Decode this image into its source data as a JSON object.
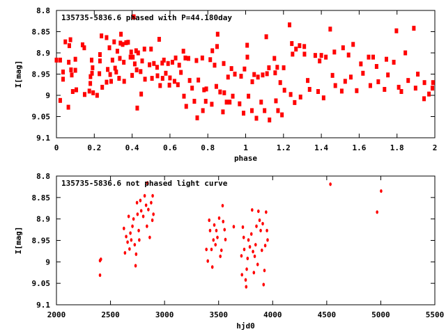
{
  "chart_data": [
    {
      "type": "scatter",
      "title": "135735-5836.6 phased with P=44.180day",
      "xlabel": "phase",
      "ylabel": "I[mag]",
      "xlim": [
        0,
        2
      ],
      "ylim": [
        8.8,
        9.1
      ],
      "y_inverted": true,
      "xticks": [
        "0",
        "0.2",
        "0.4",
        "0.6",
        "0.8",
        "1",
        "1.2",
        "1.4",
        "1.6",
        "1.8",
        "2"
      ],
      "yticks": [
        "8.8",
        "8.85",
        "8.9",
        "8.95",
        "9",
        "9.05",
        "9.1"
      ],
      "marker_color": "#ff0000",
      "points": [
        [
          0,
          8.917
        ],
        [
          0.02,
          8.917
        ],
        [
          0.02,
          9.012
        ],
        [
          0.035,
          8.962
        ],
        [
          0.035,
          8.945
        ],
        [
          0.047,
          8.874
        ],
        [
          0.063,
          9.028
        ],
        [
          0.065,
          8.922
        ],
        [
          0.068,
          8.883
        ],
        [
          0.074,
          8.869
        ],
        [
          0.077,
          8.94
        ],
        [
          0.081,
          8.952
        ],
        [
          0.086,
          8.991
        ],
        [
          0.1,
          8.915
        ],
        [
          0.1,
          8.941
        ],
        [
          0.105,
          8.987
        ],
        [
          0.138,
          8.881
        ],
        [
          0.147,
          8.888
        ],
        [
          0.149,
          8.998
        ],
        [
          0.174,
          8.99
        ],
        [
          0.179,
          8.972
        ],
        [
          0.18,
          8.956
        ],
        [
          0.186,
          8.917
        ],
        [
          0.188,
          8.948
        ],
        [
          0.191,
          8.935
        ],
        [
          0.194,
          8.994
        ],
        [
          0.215,
          9.0
        ],
        [
          0.227,
          8.949
        ],
        [
          0.23,
          8.919
        ],
        [
          0.23,
          8.904
        ],
        [
          0.238,
          8.86
        ],
        [
          0.242,
          8.981
        ],
        [
          0.265,
          8.864
        ],
        [
          0.265,
          8.969
        ],
        [
          0.271,
          8.939
        ],
        [
          0.28,
          8.888
        ],
        [
          0.284,
          8.951
        ],
        [
          0.289,
          8.967
        ],
        [
          0.296,
          8.917
        ],
        [
          0.305,
          8.874
        ],
        [
          0.31,
          8.936
        ],
        [
          0.316,
          8.945
        ],
        [
          0.322,
          8.896
        ],
        [
          0.331,
          8.96
        ],
        [
          0.335,
          8.913
        ],
        [
          0.338,
          8.877
        ],
        [
          0.341,
          8.856
        ],
        [
          0.35,
          8.88
        ],
        [
          0.356,
          8.922
        ],
        [
          0.358,
          8.967
        ],
        [
          0.368,
          8.876
        ],
        [
          0.379,
          8.875
        ],
        [
          0.391,
          8.91
        ],
        [
          0.395,
          8.898
        ],
        [
          0.4,
          8.953
        ],
        [
          0.404,
          8.91
        ],
        [
          0.409,
          8.815
        ],
        [
          0.414,
          8.926
        ],
        [
          0.421,
          8.895
        ],
        [
          0.424,
          8.94
        ],
        [
          0.427,
          9.03
        ],
        [
          0.432,
          8.9
        ],
        [
          0.445,
          8.944
        ],
        [
          0.448,
          8.997
        ],
        [
          0.453,
          8.919
        ],
        [
          0.465,
          8.891
        ],
        [
          0.468,
          8.962
        ],
        [
          0.492,
          8.928
        ],
        [
          0.5,
          8.891
        ],
        [
          0.505,
          8.96
        ],
        [
          0.515,
          8.925
        ],
        [
          0.532,
          8.934
        ],
        [
          0.534,
          8.954
        ],
        [
          0.543,
          8.868
        ],
        [
          0.548,
          8.977
        ],
        [
          0.559,
          8.924
        ],
        [
          0.561,
          8.96
        ],
        [
          0.568,
          8.917
        ],
        [
          0.578,
          8.948
        ],
        [
          0.59,
          8.925
        ],
        [
          0.597,
          8.976
        ],
        [
          0.6,
          8.959
        ],
        [
          0.613,
          8.922
        ],
        [
          0.624,
          8.967
        ],
        [
          0.63,
          8.912
        ],
        [
          0.642,
          8.975
        ],
        [
          0.649,
          8.929
        ],
        [
          0.658,
          8.946
        ],
        [
          0.671,
          8.896
        ],
        [
          0.674,
          9.002
        ],
        [
          0.681,
          8.912
        ],
        [
          0.686,
          9.026
        ],
        [
          0.698,
          8.913
        ],
        [
          0.704,
          8.965
        ],
        [
          0.717,
          8.983
        ],
        [
          0.729,
          9.014
        ],
        [
          0.74,
          8.918
        ],
        [
          0.744,
          9.053
        ],
        [
          0.75,
          8.964
        ],
        [
          0.771,
          8.912
        ],
        [
          0.774,
          9.036
        ],
        [
          0.78,
          8.987
        ],
        [
          0.789,
          9.014
        ],
        [
          0.792,
          8.985
        ],
        [
          0.813,
          8.916
        ],
        [
          0.821,
          9.021
        ],
        [
          0.824,
          8.895
        ],
        [
          0.836,
          8.929
        ],
        [
          0.845,
          8.979
        ],
        [
          0.849,
          8.885
        ],
        [
          0.852,
          8.856
        ],
        [
          0.865,
          8.992
        ],
        [
          0.88,
          9.039
        ],
        [
          0.884,
          8.925
        ],
        [
          0.887,
          8.994
        ],
        [
          0.899,
          9.016
        ],
        [
          0.907,
          8.957
        ],
        [
          0.916,
          9.016
        ],
        [
          0.925,
          8.937
        ],
        [
          0.932,
          9.002
        ],
        [
          0.943,
          8.95
        ],
        [
          0.968,
          9.02
        ],
        [
          0.976,
          8.955
        ],
        [
          0.989,
          9.042
        ],
        [
          0.994,
          8.938
        ],
        [
          1.008,
          8.882
        ],
        [
          1.009,
          8.91
        ],
        [
          1.015,
          9.002
        ],
        [
          1.033,
          9.036
        ],
        [
          1.035,
          8.968
        ],
        [
          1.045,
          8.951
        ],
        [
          1.057,
          9.054
        ],
        [
          1.065,
          8.957
        ],
        [
          1.082,
          9.016
        ],
        [
          1.09,
          8.952
        ],
        [
          1.1,
          9.036
        ],
        [
          1.109,
          8.862
        ],
        [
          1.113,
          8.949
        ],
        [
          1.123,
          8.935
        ],
        [
          1.126,
          9.058
        ],
        [
          1.152,
          8.913
        ],
        [
          1.156,
          8.947
        ],
        [
          1.16,
          9.013
        ],
        [
          1.167,
          8.934
        ],
        [
          1.171,
          9.036
        ],
        [
          1.183,
          8.97
        ],
        [
          1.192,
          9.046
        ],
        [
          1.201,
          8.935
        ],
        [
          1.205,
          8.988
        ],
        [
          1.232,
          8.834
        ],
        [
          1.238,
          8.998
        ],
        [
          1.244,
          8.878
        ],
        [
          1.248,
          8.903
        ],
        [
          1.259,
          9.017
        ],
        [
          1.266,
          8.891
        ],
        [
          1.285,
          8.883
        ],
        [
          1.29,
          9.004
        ],
        [
          1.31,
          8.885
        ],
        [
          1.311,
          8.903
        ],
        [
          1.328,
          8.965
        ],
        [
          1.338,
          8.986
        ],
        [
          1.368,
          8.906
        ],
        [
          1.383,
          8.991
        ],
        [
          1.391,
          8.919
        ],
        [
          1.4,
          8.906
        ],
        [
          1.412,
          9.006
        ],
        [
          1.424,
          8.91
        ],
        [
          1.447,
          8.844
        ],
        [
          1.459,
          8.953
        ],
        [
          1.469,
          8.898
        ],
        [
          1.474,
          8.977
        ],
        [
          1.508,
          8.99
        ],
        [
          1.515,
          8.888
        ],
        [
          1.526,
          8.967
        ],
        [
          1.544,
          8.905
        ],
        [
          1.556,
          8.957
        ],
        [
          1.568,
          8.88
        ],
        [
          1.587,
          8.989
        ],
        [
          1.609,
          8.926
        ],
        [
          1.62,
          8.948
        ],
        [
          1.65,
          8.91
        ],
        [
          1.659,
          8.977
        ],
        [
          1.674,
          8.91
        ],
        [
          1.692,
          8.932
        ],
        [
          1.701,
          8.968
        ],
        [
          1.734,
          8.986
        ],
        [
          1.744,
          8.915
        ],
        [
          1.752,
          8.952
        ],
        [
          1.783,
          8.922
        ],
        [
          1.797,
          8.848
        ],
        [
          1.809,
          8.981
        ],
        [
          1.823,
          8.991
        ],
        [
          1.844,
          8.9
        ],
        [
          1.859,
          8.965
        ],
        [
          1.889,
          8.842
        ],
        [
          1.898,
          8.983
        ],
        [
          1.91,
          8.95
        ],
        [
          1.943,
          9.008
        ],
        [
          1.945,
          8.97
        ],
        [
          1.969,
          8.997
        ],
        [
          1.987,
          8.983
        ],
        [
          1.99,
          8.97
        ]
      ]
    },
    {
      "type": "scatter",
      "title": "135735-5836.6 not phased light curve",
      "xlabel": "hjd0",
      "ylabel": "I[mag]",
      "xlim": [
        2000,
        5500
      ],
      "ylim": [
        8.8,
        9.1
      ],
      "y_inverted": true,
      "xticks": [
        "2000",
        "2500",
        "3000",
        "3500",
        "4000",
        "4500",
        "5000",
        "5500"
      ],
      "yticks": [
        "8.8",
        "8.85",
        "8.9",
        "8.95",
        "9",
        "9.05",
        "9.1"
      ],
      "marker_color": "#ff0000",
      "points": [
        [
          2403,
          8.997
        ],
        [
          2411,
          8.994
        ],
        [
          2403,
          9.031
        ],
        [
          2624,
          8.922
        ],
        [
          2634,
          8.979
        ],
        [
          2645,
          8.941
        ],
        [
          2658,
          8.954
        ],
        [
          2668,
          8.894
        ],
        [
          2676,
          8.97
        ],
        [
          2684,
          8.933
        ],
        [
          2692,
          8.949
        ],
        [
          2703,
          8.917
        ],
        [
          2713,
          8.9
        ],
        [
          2724,
          8.96
        ],
        [
          2732,
          9.009
        ],
        [
          2737,
          8.982
        ],
        [
          2745,
          8.862
        ],
        [
          2750,
          8.889
        ],
        [
          2761,
          8.927
        ],
        [
          2766,
          8.949
        ],
        [
          2776,
          8.857
        ],
        [
          2784,
          8.881
        ],
        [
          2803,
          8.894
        ],
        [
          2816,
          8.846
        ],
        [
          2829,
          8.868
        ],
        [
          2837,
          8.917
        ],
        [
          2842,
          8.816
        ],
        [
          2850,
          8.878
        ],
        [
          2863,
          8.943
        ],
        [
          2876,
          8.862
        ],
        [
          2887,
          8.903
        ],
        [
          2890,
          8.846
        ],
        [
          2897,
          8.889
        ],
        [
          3387,
          8.971
        ],
        [
          3400,
          8.998
        ],
        [
          3413,
          8.903
        ],
        [
          3421,
          8.927
        ],
        [
          3434,
          8.971
        ],
        [
          3442,
          9.012
        ],
        [
          3452,
          8.949
        ],
        [
          3460,
          8.914
        ],
        [
          3471,
          8.96
        ],
        [
          3479,
          8.927
        ],
        [
          3489,
          8.943
        ],
        [
          3505,
          8.898
        ],
        [
          3516,
          8.987
        ],
        [
          3526,
          8.973
        ],
        [
          3537,
          8.869
        ],
        [
          3542,
          8.906
        ],
        [
          3555,
          8.925
        ],
        [
          3563,
          8.948
        ],
        [
          3640,
          8.918
        ],
        [
          3711,
          8.986
        ],
        [
          3716,
          9.03
        ],
        [
          3724,
          8.919
        ],
        [
          3732,
          8.943
        ],
        [
          3737,
          8.971
        ],
        [
          3750,
          9.042
        ],
        [
          3755,
          9.058
        ],
        [
          3760,
          9.017
        ],
        [
          3768,
          8.992
        ],
        [
          3776,
          8.949
        ],
        [
          3789,
          8.965
        ],
        [
          3803,
          8.935
        ],
        [
          3810,
          8.879
        ],
        [
          3818,
          8.976
        ],
        [
          3826,
          9.025
        ],
        [
          3834,
          8.987
        ],
        [
          3842,
          8.96
        ],
        [
          3850,
          8.917
        ],
        [
          3861,
          9.006
        ],
        [
          3868,
          8.882
        ],
        [
          3879,
          8.903
        ],
        [
          3889,
          8.927
        ],
        [
          3900,
          8.973
        ],
        [
          3908,
          8.911
        ],
        [
          3916,
          9.053
        ],
        [
          3924,
          9.02
        ],
        [
          3931,
          8.962
        ],
        [
          3939,
          8.884
        ],
        [
          3947,
          8.927
        ],
        [
          3953,
          8.949
        ],
        [
          4534,
          8.819
        ],
        [
          4966,
          8.884
        ],
        [
          5003,
          8.835
        ]
      ]
    }
  ]
}
